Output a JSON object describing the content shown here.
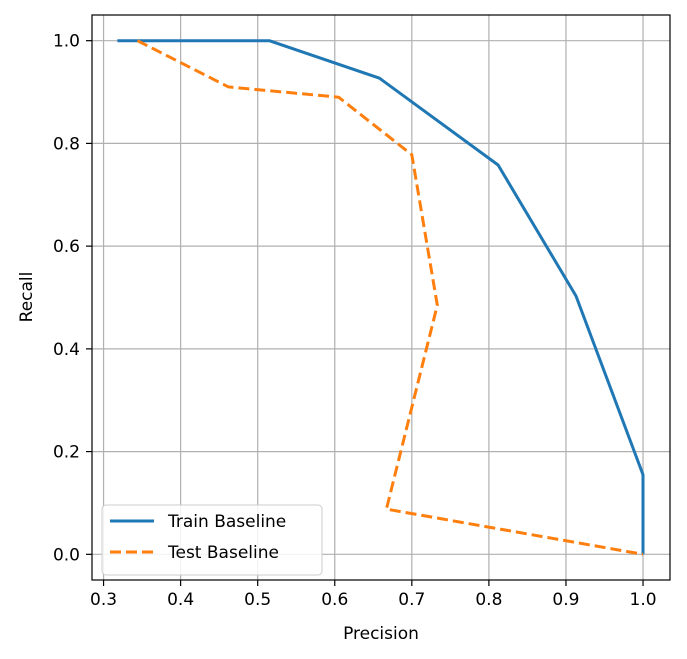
{
  "chart_data": {
    "type": "line",
    "title": "",
    "xlabel": "Precision",
    "ylabel": "Recall",
    "xlim": [
      0.285,
      1.035
    ],
    "ylim": [
      -0.05,
      1.05
    ],
    "xticks": [
      0.3,
      0.4,
      0.5,
      0.6,
      0.7,
      0.8,
      0.9,
      1.0
    ],
    "xtick_labels": [
      "0.3",
      "0.4",
      "0.5",
      "0.6",
      "0.7",
      "0.8",
      "0.9",
      "1.0"
    ],
    "yticks": [
      0.0,
      0.2,
      0.4,
      0.6,
      0.8,
      1.0
    ],
    "ytick_labels": [
      "0.0",
      "0.2",
      "0.4",
      "0.6",
      "0.8",
      "1.0"
    ],
    "grid": true,
    "legend_position": "bottom-left",
    "series": [
      {
        "name": "Train Baseline",
        "color": "#1f77b4",
        "style": "solid",
        "x": [
          0.318,
          0.515,
          0.658,
          0.812,
          0.913,
          1.0,
          1.0
        ],
        "y": [
          1.0,
          1.0,
          0.927,
          0.758,
          0.503,
          0.155,
          0.0
        ]
      },
      {
        "name": "Test Baseline",
        "color": "#ff7f0e",
        "style": "dashed",
        "x": [
          0.344,
          0.462,
          0.605,
          0.7,
          0.733,
          0.667,
          1.0
        ],
        "y": [
          1.0,
          0.91,
          0.89,
          0.778,
          0.485,
          0.088,
          0.0
        ]
      }
    ]
  }
}
